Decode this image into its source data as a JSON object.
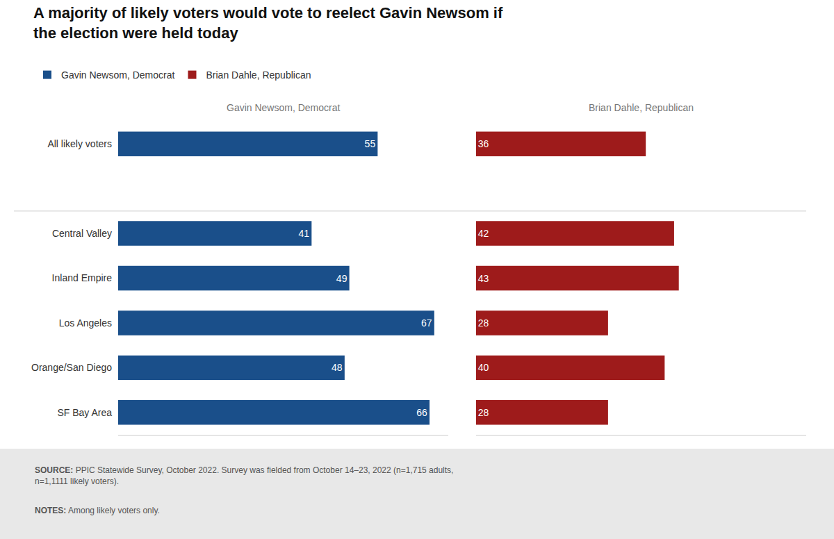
{
  "chart_data": {
    "type": "bar",
    "orientation": "horizontal",
    "title": [
      "A majority of likely voters would vote to reelect Gavin Newsom if",
      "the election were held today"
    ],
    "categories": [
      "All likely voters",
      null,
      "Central Valley",
      "Inland Empire",
      "Los Angeles",
      "Orange/San Diego",
      "SF Bay Area"
    ],
    "series": [
      {
        "name": "Gavin Newsom, Democrat",
        "color": "#1a4f8a",
        "values": [
          55,
          null,
          41,
          49,
          67,
          48,
          66
        ]
      },
      {
        "name": "Brian Dahle, Republican",
        "color": "#9e1b1b",
        "values": [
          36,
          null,
          42,
          43,
          28,
          40,
          28
        ]
      }
    ],
    "xlim": [
      0,
      70
    ],
    "data_labels": true,
    "tick_labels": "y",
    "grid": false,
    "legend": "top left",
    "annotations": [
      {
        "text": "Gavin Newsom, Democrat"
      },
      {
        "text": "Brian Dahle, Republican"
      },
      {
        "label": "SOURCE:",
        "text": " PPIC Statewide Survey, October 2022. Survey was fielded from October 14–23, 2022 (n=1,715 adults,\nn=1,1111 likely voters)."
      },
      {
        "label": "NOTES:",
        "text": " Among likely voters only."
      }
    ]
  }
}
